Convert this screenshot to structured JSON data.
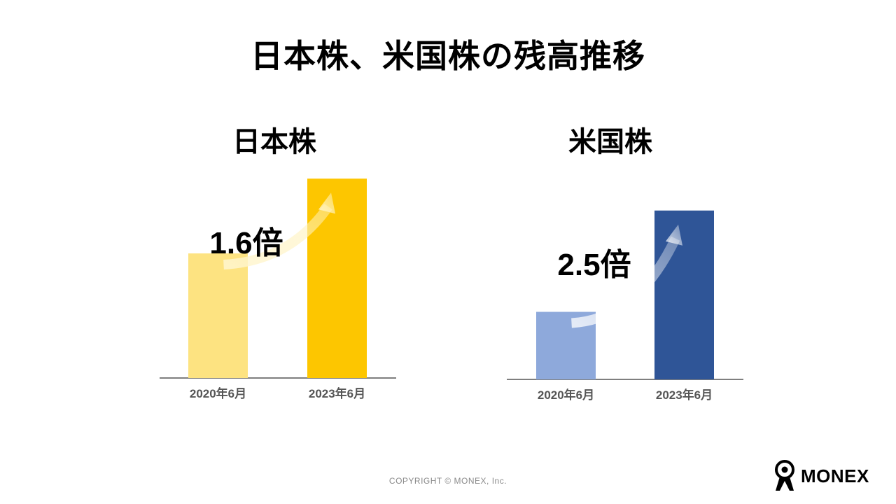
{
  "title": "日本株、米国株の残高推移",
  "chart_data": [
    {
      "type": "bar",
      "title": "日本株",
      "categories": [
        "2020年6月",
        "2023年6月"
      ],
      "values": [
        1.0,
        1.6
      ],
      "annotation": "1.6倍",
      "colors": [
        "#FDE381",
        "#FDC600"
      ]
    },
    {
      "type": "bar",
      "title": "米国株",
      "categories": [
        "2020年6月",
        "2023年6月"
      ],
      "values": [
        1.0,
        2.5
      ],
      "annotation": "2.5倍",
      "colors": [
        "#8EA9DB",
        "#2F5597"
      ]
    }
  ],
  "footer": {
    "copyright": "COPYRIGHT © MONEX, Inc.",
    "logo_text": "MONEX"
  }
}
